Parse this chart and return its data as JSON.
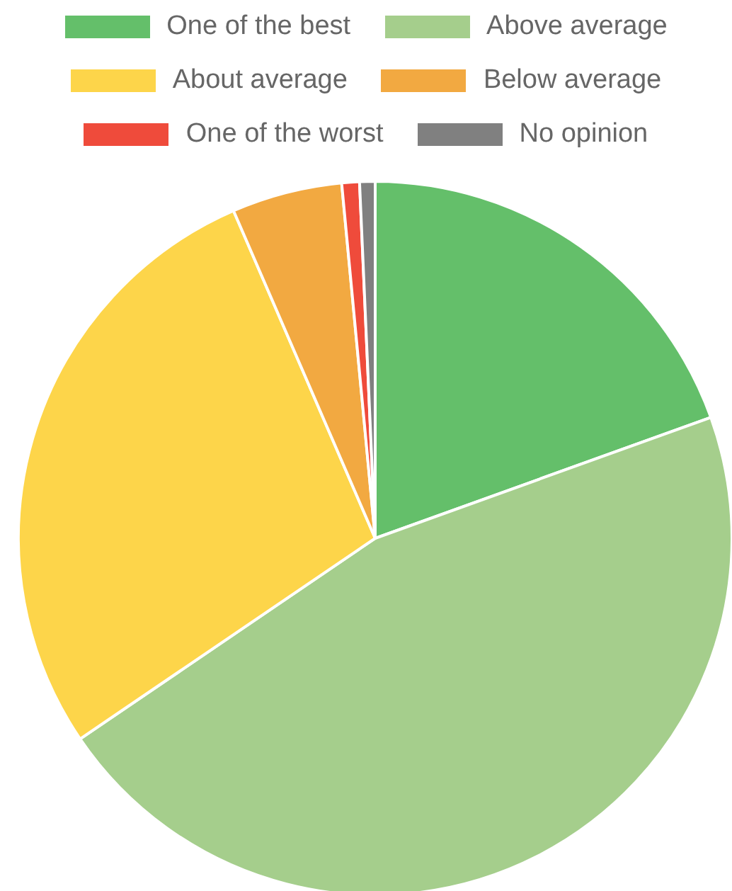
{
  "chart_data": {
    "type": "pie",
    "categories": [
      "One of the best",
      "Above average",
      "About average",
      "Below average",
      "One of the worst",
      "No opinion"
    ],
    "values": [
      19.5,
      46,
      28,
      5,
      0.8,
      0.7
    ],
    "colors": [
      "#64bf6a",
      "#a5ce8c",
      "#fdd54a",
      "#f2a941",
      "#ef4b3b",
      "#808080"
    ],
    "legend": "top"
  }
}
